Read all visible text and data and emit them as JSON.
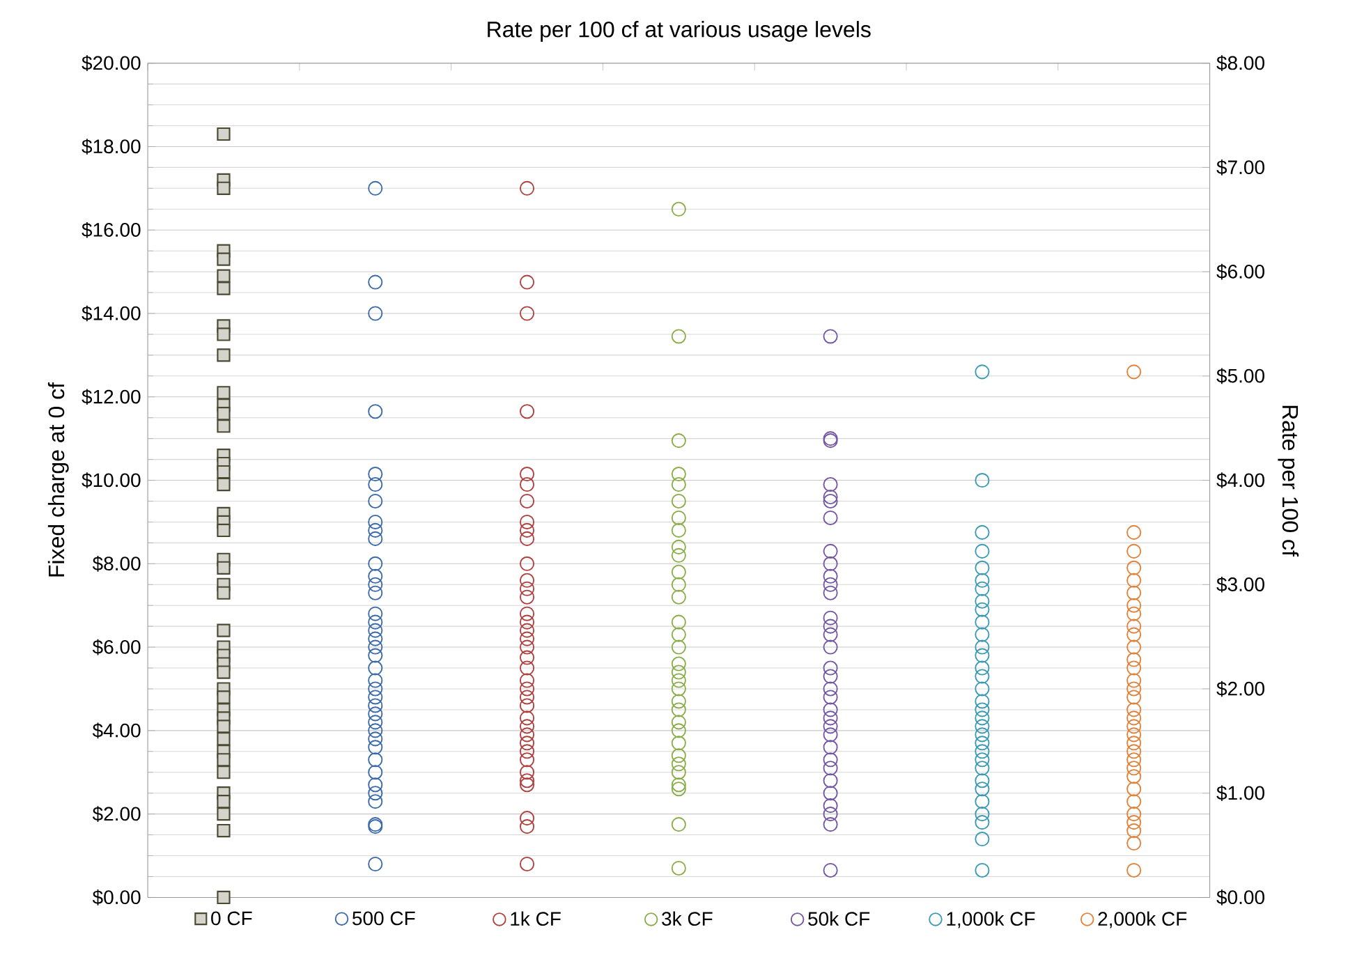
{
  "chart_data": {
    "type": "scatter",
    "title": "Rate per 100 cf at various usage levels",
    "ylabel": "Fixed charge at 0 cf",
    "y2label": "Rate per 100 cf",
    "categories": [
      "0 CF",
      "500 CF",
      "1k CF",
      "3k CF",
      "50k CF",
      "1,000k CF",
      "2,000k CF"
    ],
    "grid": "y",
    "ylim": [
      0,
      20
    ],
    "yticks": [
      {
        "value": 0,
        "label": "$0.00"
      },
      {
        "value": 2,
        "label": "$2.00"
      },
      {
        "value": 4,
        "label": "$4.00"
      },
      {
        "value": 6,
        "label": "$6.00"
      },
      {
        "value": 8,
        "label": "$8.00"
      },
      {
        "value": 10,
        "label": "$10.00"
      },
      {
        "value": 12,
        "label": "$12.00"
      },
      {
        "value": 14,
        "label": "$14.00"
      },
      {
        "value": 16,
        "label": "$16.00"
      },
      {
        "value": 18,
        "label": "$18.00"
      },
      {
        "value": 20,
        "label": "$20.00"
      }
    ],
    "y2lim": [
      0,
      8
    ],
    "y2ticks": [
      {
        "value": 0,
        "label": "$0.00"
      },
      {
        "value": 1,
        "label": "$1.00"
      },
      {
        "value": 2,
        "label": "$2.00"
      },
      {
        "value": 3,
        "label": "$3.00"
      },
      {
        "value": 4,
        "label": "$4.00"
      },
      {
        "value": 5,
        "label": "$5.00"
      },
      {
        "value": 6,
        "label": "$6.00"
      },
      {
        "value": 7,
        "label": "$7.00"
      },
      {
        "value": 8,
        "label": "$8.00"
      }
    ],
    "series": [
      {
        "color": "#d4d4cc",
        "marker": "square",
        "x": [
          "0 CF",
          "0 CF",
          "0 CF",
          "0 CF",
          "0 CF",
          "0 CF",
          "0 CF",
          "0 CF",
          "0 CF",
          "0 CF",
          "0 CF",
          "0 CF",
          "0 CF",
          "0 CF",
          "0 CF",
          "0 CF",
          "0 CF",
          "0 CF",
          "0 CF",
          "0 CF",
          "0 CF",
          "0 CF",
          "0 CF",
          "0 CF",
          "0 CF",
          "0 CF",
          "0 CF",
          "0 CF",
          "0 CF",
          "0 CF",
          "0 CF",
          "0 CF",
          "0 CF",
          "0 CF",
          "0 CF",
          "0 CF",
          "0 CF",
          "0 CF",
          "0 CF",
          "0 CF",
          "0 CF",
          "0 CF",
          "0 CF",
          "0 CF",
          "0 CF",
          "0 CF",
          "0 CF",
          "0 CF"
        ],
        "values": [
          18.3,
          17.2,
          17.0,
          15.5,
          15.3,
          14.9,
          14.6,
          13.7,
          13.5,
          13.0,
          12.1,
          11.8,
          11.6,
          11.3,
          10.6,
          10.4,
          10.2,
          9.9,
          9.2,
          9.0,
          8.8,
          8.1,
          7.9,
          7.5,
          7.3,
          6.4,
          null,
          6.0,
          5.8,
          5.6,
          5.4,
          null,
          5.0,
          4.8,
          4.5,
          4.3,
          4.1,
          3.8,
          null,
          3.5,
          3.3,
          3.0,
          2.5,
          2.3,
          2.0,
          null,
          1.6,
          0.0
        ]
      },
      {
        "color": "#3a6aaa",
        "marker": "circle",
        "axis": "y2",
        "x": [
          "500 CF",
          "500 CF",
          "500 CF",
          "500 CF",
          "500 CF",
          "500 CF",
          "500 CF",
          "500 CF",
          "500 CF",
          "500 CF",
          "500 CF",
          "500 CF",
          "500 CF",
          "500 CF",
          "500 CF",
          "500 CF",
          "500 CF",
          "500 CF",
          "500 CF",
          "500 CF",
          "500 CF",
          "500 CF",
          "500 CF",
          "500 CF",
          "500 CF",
          "500 CF",
          "500 CF",
          "500 CF",
          "500 CF",
          "500 CF",
          "500 CF",
          "500 CF",
          "500 CF",
          "500 CF",
          "500 CF",
          "500 CF",
          "500 CF",
          "500 CF"
        ],
        "values": [
          6.8,
          5.9,
          5.6,
          4.66,
          4.06,
          3.96,
          3.8,
          3.6,
          3.52,
          3.44,
          3.2,
          3.08,
          3.0,
          2.92,
          2.72,
          2.64,
          2.56,
          2.48,
          2.4,
          2.32,
          2.2,
          2.08,
          2.0,
          1.92,
          1.84,
          1.76,
          1.68,
          1.6,
          1.52,
          1.44,
          1.32,
          1.2,
          1.08,
          1.0,
          0.92,
          0.7,
          0.68,
          0.32
        ]
      },
      {
        "color": "#b0403e",
        "marker": "circle",
        "axis": "y2",
        "x": [
          "1k CF",
          "1k CF",
          "1k CF",
          "1k CF",
          "1k CF",
          "1k CF",
          "1k CF",
          "1k CF",
          "1k CF",
          "1k CF",
          "1k CF",
          "1k CF",
          "1k CF",
          "1k CF",
          "1k CF",
          "1k CF",
          "1k CF",
          "1k CF",
          "1k CF",
          "1k CF",
          "1k CF",
          "1k CF",
          "1k CF",
          "1k CF",
          "1k CF",
          "1k CF",
          "1k CF",
          "1k CF",
          "1k CF",
          "1k CF",
          "1k CF",
          "1k CF",
          "1k CF",
          "1k CF",
          "1k CF",
          "1k CF",
          "1k CF"
        ],
        "values": [
          6.8,
          5.9,
          5.6,
          4.66,
          4.06,
          3.96,
          3.8,
          3.6,
          3.52,
          3.44,
          3.2,
          3.04,
          2.96,
          2.88,
          2.72,
          2.64,
          2.56,
          2.48,
          2.4,
          2.3,
          2.2,
          2.08,
          2.0,
          1.92,
          1.84,
          1.72,
          1.64,
          1.56,
          1.48,
          1.4,
          1.32,
          1.2,
          1.12,
          1.08,
          0.76,
          0.68,
          0.32
        ]
      },
      {
        "color": "#8aad4a",
        "marker": "circle",
        "axis": "y2",
        "x": [
          "3k CF",
          "3k CF",
          "3k CF",
          "3k CF",
          "3k CF",
          "3k CF",
          "3k CF",
          "3k CF",
          "3k CF",
          "3k CF",
          "3k CF",
          "3k CF",
          "3k CF",
          "3k CF",
          "3k CF",
          "3k CF",
          "3k CF",
          "3k CF",
          "3k CF",
          "3k CF",
          "3k CF",
          "3k CF",
          "3k CF",
          "3k CF",
          "3k CF",
          "3k CF",
          "3k CF",
          "3k CF",
          "3k CF",
          "3k CF",
          "3k CF",
          "3k CF"
        ],
        "values": [
          6.6,
          5.38,
          4.38,
          4.06,
          3.96,
          3.8,
          3.64,
          3.52,
          3.36,
          3.28,
          3.12,
          3.0,
          2.88,
          2.64,
          2.52,
          2.4,
          2.24,
          2.16,
          2.08,
          2.0,
          1.88,
          1.8,
          1.68,
          1.6,
          1.48,
          1.36,
          1.28,
          1.2,
          1.08,
          1.04,
          0.7,
          0.28
        ]
      },
      {
        "color": "#7358a0",
        "marker": "circle",
        "axis": "y2",
        "x": [
          "50k CF",
          "50k CF",
          "50k CF",
          "50k CF",
          "50k CF",
          "50k CF",
          "50k CF",
          "50k CF",
          "50k CF",
          "50k CF",
          "50k CF",
          "50k CF",
          "50k CF",
          "50k CF",
          "50k CF",
          "50k CF",
          "50k CF",
          "50k CF",
          "50k CF",
          "50k CF",
          "50k CF",
          "50k CF",
          "50k CF",
          "50k CF",
          "50k CF",
          "50k CF",
          "50k CF",
          "50k CF",
          "50k CF",
          "50k CF",
          "50k CF",
          "50k CF",
          "50k CF"
        ],
        "values": [
          5.38,
          4.4,
          4.38,
          3.96,
          3.84,
          3.8,
          3.64,
          3.32,
          3.2,
          3.08,
          3.0,
          2.92,
          2.68,
          2.6,
          2.52,
          2.4,
          2.2,
          2.12,
          2.0,
          1.92,
          1.8,
          1.72,
          1.64,
          1.56,
          1.44,
          1.32,
          1.24,
          1.12,
          1.0,
          0.88,
          0.8,
          0.7,
          0.26
        ]
      },
      {
        "color": "#3a9ab5",
        "marker": "circle",
        "axis": "y2",
        "x": [
          "1,000k CF",
          "1,000k CF",
          "1,000k CF",
          "1,000k CF",
          "1,000k CF",
          "1,000k CF",
          "1,000k CF",
          "1,000k CF",
          "1,000k CF",
          "1,000k CF",
          "1,000k CF",
          "1,000k CF",
          "1,000k CF",
          "1,000k CF",
          "1,000k CF",
          "1,000k CF",
          "1,000k CF",
          "1,000k CF",
          "1,000k CF",
          "1,000k CF",
          "1,000k CF",
          "1,000k CF",
          "1,000k CF",
          "1,000k CF",
          "1,000k CF",
          "1,000k CF",
          "1,000k CF",
          "1,000k CF",
          "1,000k CF",
          "1,000k CF",
          "1,000k CF",
          "1,000k CF"
        ],
        "values": [
          5.04,
          4.0,
          3.5,
          3.32,
          3.16,
          3.04,
          2.96,
          2.84,
          2.76,
          2.64,
          2.52,
          2.4,
          2.32,
          2.2,
          2.12,
          2.0,
          1.88,
          1.8,
          1.72,
          1.64,
          1.56,
          1.48,
          1.4,
          1.32,
          1.24,
          1.12,
          1.04,
          0.92,
          0.8,
          0.72,
          0.56,
          0.26
        ]
      },
      {
        "color": "#e0823a",
        "marker": "circle",
        "axis": "y2",
        "x": [
          "2,000k CF",
          "2,000k CF",
          "2,000k CF",
          "2,000k CF",
          "2,000k CF",
          "2,000k CF",
          "2,000k CF",
          "2,000k CF",
          "2,000k CF",
          "2,000k CF",
          "2,000k CF",
          "2,000k CF",
          "2,000k CF",
          "2,000k CF",
          "2,000k CF",
          "2,000k CF",
          "2,000k CF",
          "2,000k CF",
          "2,000k CF",
          "2,000k CF",
          "2,000k CF",
          "2,000k CF",
          "2,000k CF",
          "2,000k CF",
          "2,000k CF",
          "2,000k CF",
          "2,000k CF",
          "2,000k CF",
          "2,000k CF",
          "2,000k CF",
          "2,000k CF",
          "2,000k CF"
        ],
        "values": [
          5.04,
          3.5,
          3.32,
          3.16,
          3.04,
          2.92,
          2.8,
          2.72,
          2.6,
          2.52,
          2.4,
          2.28,
          2.2,
          2.08,
          2.0,
          1.92,
          1.8,
          1.72,
          1.64,
          1.56,
          1.48,
          1.4,
          1.32,
          1.24,
          1.16,
          1.04,
          0.92,
          0.8,
          0.72,
          0.64,
          0.52,
          0.26
        ]
      }
    ]
  }
}
